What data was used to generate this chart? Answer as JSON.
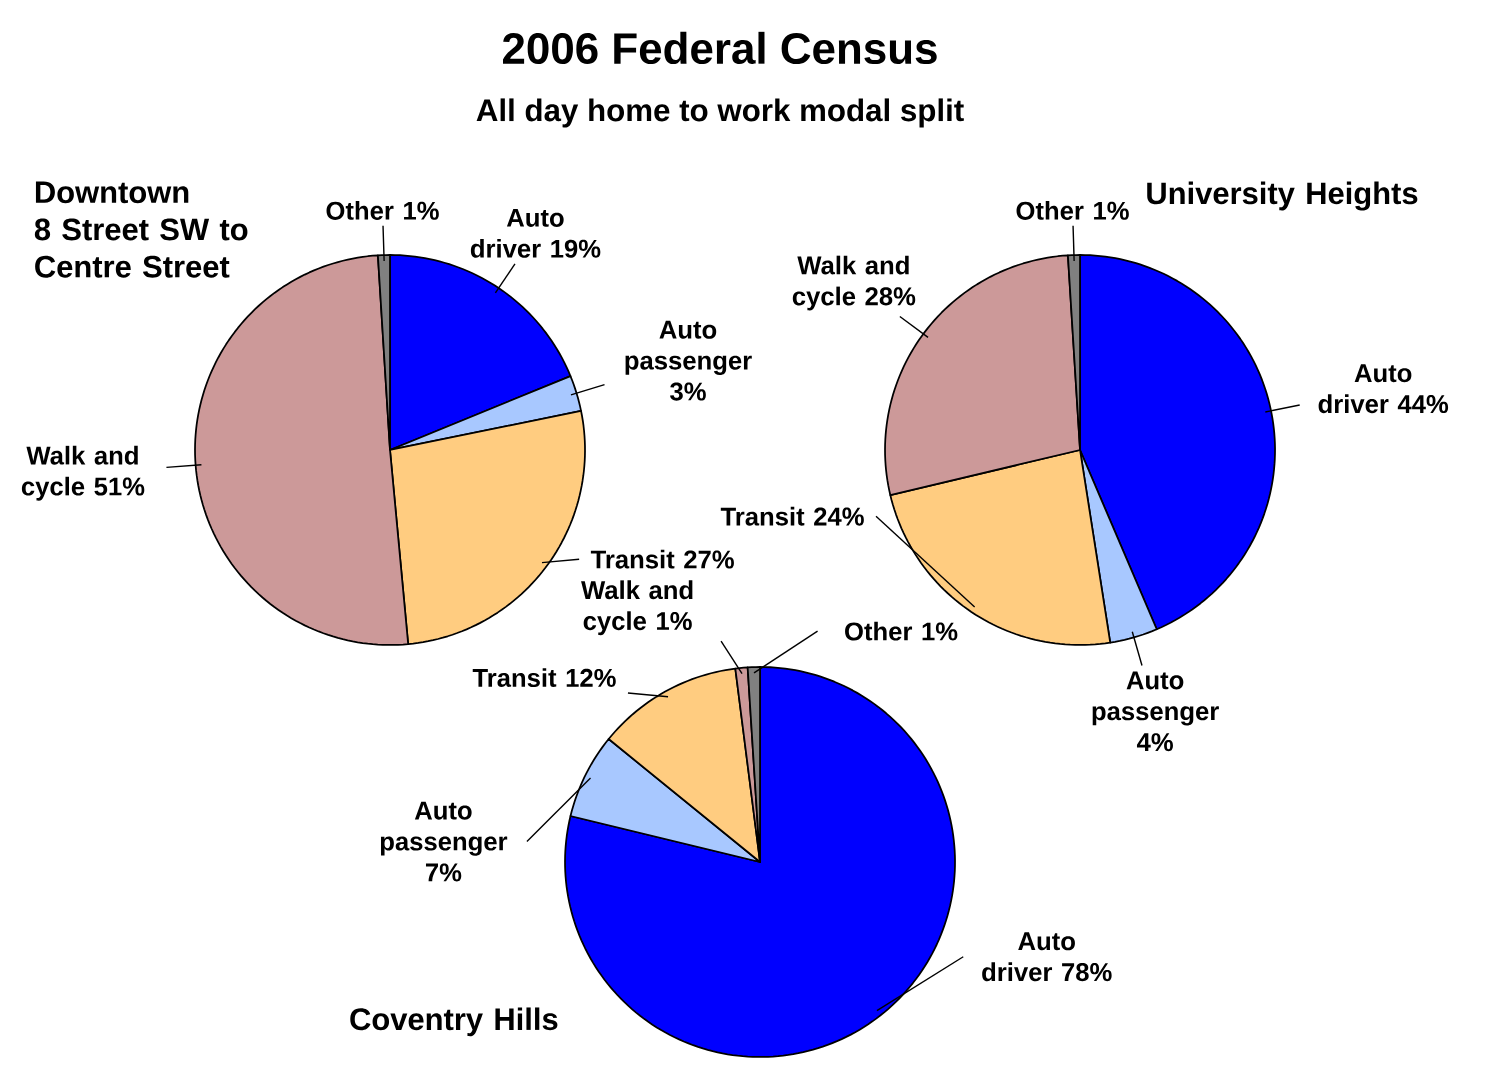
{
  "chart_data": [
    {
      "type": "other",
      "title": "2006 Federal Census",
      "subtitle": "All day home to work modal split"
    },
    {
      "type": "pie",
      "title": "Downtown",
      "subtitle": "8 Street SW to Centre Street",
      "categories": [
        "Auto driver",
        "Auto passenger",
        "Transit",
        "Walk and cycle",
        "Other"
      ],
      "values": [
        19,
        3,
        27,
        51,
        1
      ],
      "value_labels": [
        "19%",
        "3%",
        "27%",
        "51%",
        "1%"
      ],
      "colors": [
        "#0000ff",
        "#a8c8ff",
        "#ffcc80",
        "#cc9999",
        "#808080"
      ]
    },
    {
      "type": "pie",
      "title": "University Heights",
      "categories": [
        "Auto driver",
        "Auto passenger",
        "Transit",
        "Walk and cycle",
        "Other"
      ],
      "values": [
        44,
        4,
        24,
        28,
        1
      ],
      "value_labels": [
        "44%",
        "4%",
        "24%",
        "28%",
        "1%"
      ],
      "colors": [
        "#0000ff",
        "#a8c8ff",
        "#ffcc80",
        "#cc9999",
        "#808080"
      ]
    },
    {
      "type": "pie",
      "title": "Coventry Hills",
      "categories": [
        "Auto driver",
        "Auto passenger",
        "Transit",
        "Walk and cycle",
        "Other"
      ],
      "values": [
        78,
        7,
        12,
        1,
        1
      ],
      "value_labels": [
        "78%",
        "7%",
        "12%",
        "1%",
        "1%"
      ],
      "colors": [
        "#0000ff",
        "#a8c8ff",
        "#ffcc80",
        "#cc9999",
        "#808080"
      ]
    }
  ]
}
